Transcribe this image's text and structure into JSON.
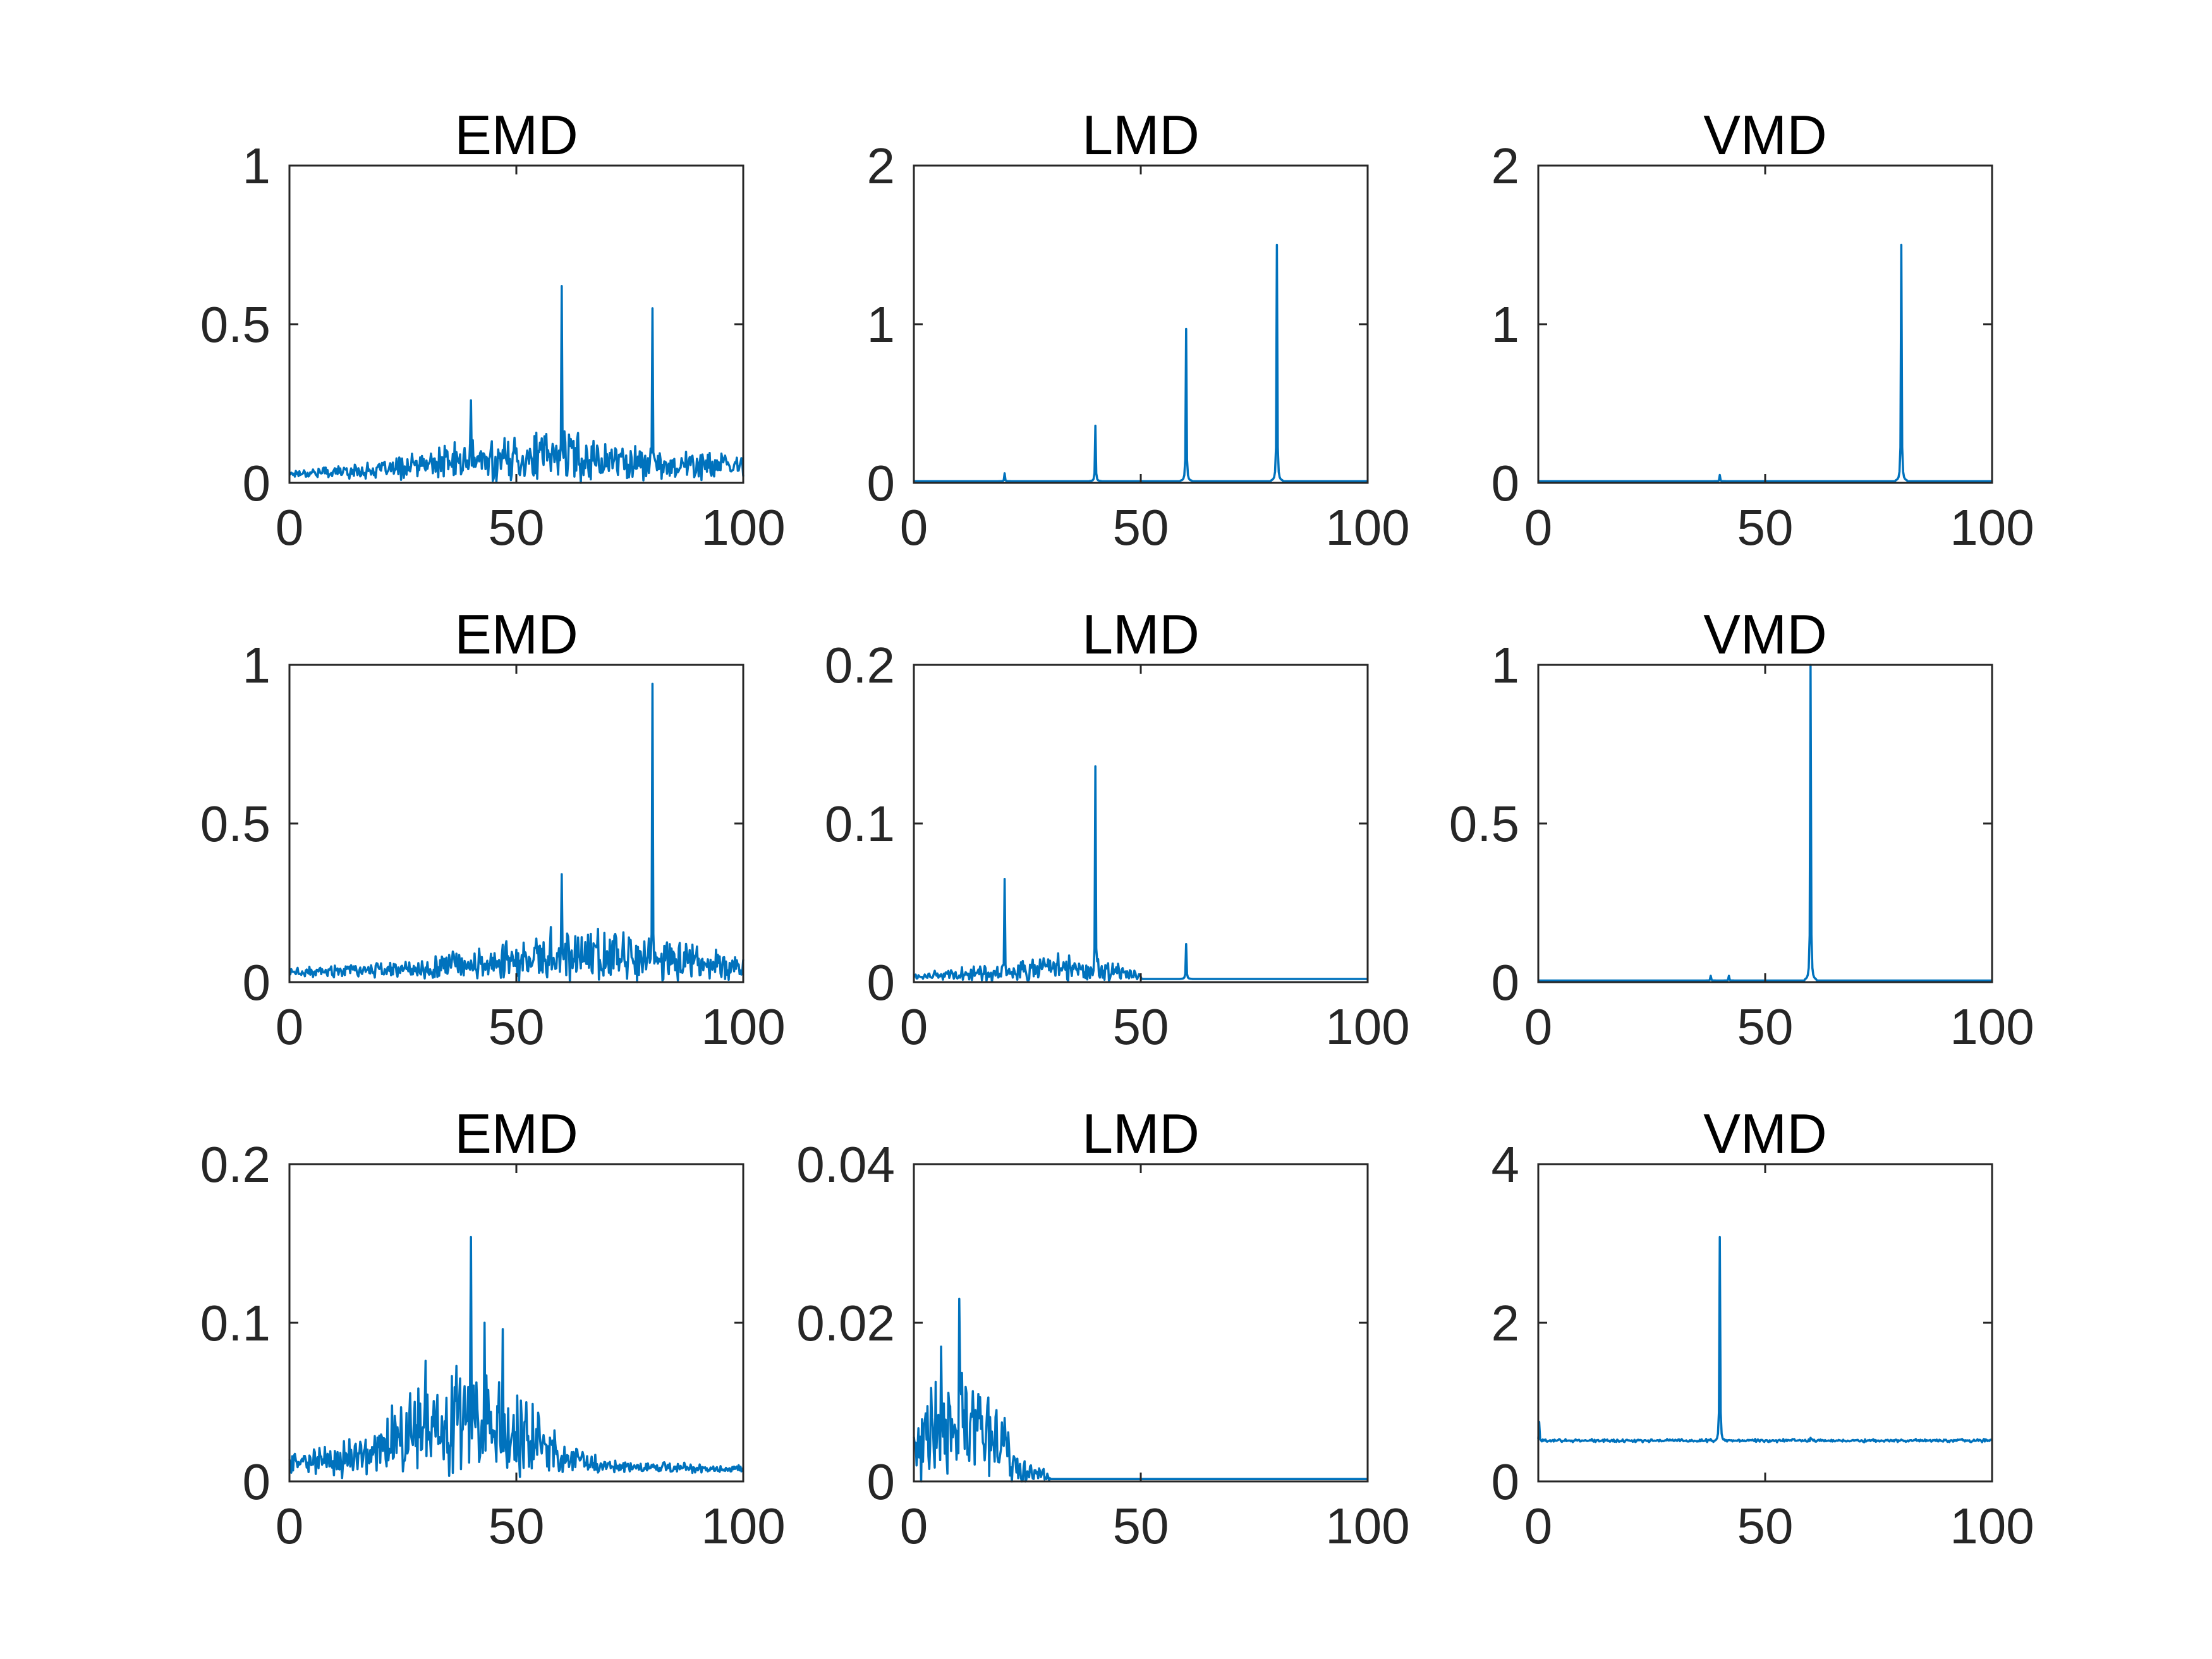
{
  "figure": {
    "background": "#ffffff",
    "line_color": "#0072bd",
    "axes_color": "#262626"
  },
  "chart_data": [
    {
      "type": "line",
      "title": "EMD",
      "xlim": [
        0,
        100
      ],
      "ylim": [
        0,
        1
      ],
      "xticks": [
        "0",
        "50",
        "100"
      ],
      "yticks": [
        "0",
        "0.5",
        "1"
      ],
      "base": 0.02,
      "noise": {
        "from": 0,
        "to": 100,
        "env": [
          [
            0,
            0.02
          ],
          [
            20,
            0.04
          ],
          [
            35,
            0.09
          ],
          [
            60,
            0.13
          ],
          [
            80,
            0.08
          ],
          [
            100,
            0.06
          ]
        ]
      },
      "peaks": [
        {
          "x": 40,
          "y": 0.26
        },
        {
          "x": 60,
          "y": 0.62
        },
        {
          "x": 80,
          "y": 0.55
        }
      ]
    },
    {
      "type": "line",
      "title": "LMD",
      "xlim": [
        0,
        100
      ],
      "ylim": [
        0,
        2
      ],
      "xticks": [
        "0",
        "50",
        "100"
      ],
      "yticks": [
        "0",
        "1",
        "2"
      ],
      "base": 0.01,
      "noise": null,
      "peaks": [
        {
          "x": 20,
          "y": 0.06
        },
        {
          "x": 40,
          "y": 0.36
        },
        {
          "x": 60,
          "y": 0.97
        },
        {
          "x": 80,
          "y": 1.5
        }
      ]
    },
    {
      "type": "line",
      "title": "VMD",
      "xlim": [
        0,
        100
      ],
      "ylim": [
        0,
        2
      ],
      "xticks": [
        "0",
        "50",
        "100"
      ],
      "yticks": [
        "0",
        "1",
        "2"
      ],
      "base": 0.01,
      "noise": null,
      "peaks": [
        {
          "x": 40,
          "y": 0.05
        },
        {
          "x": 80,
          "y": 1.5
        }
      ]
    },
    {
      "type": "line",
      "title": "EMD",
      "xlim": [
        0,
        100
      ],
      "ylim": [
        0,
        1
      ],
      "xticks": [
        "0",
        "50",
        "100"
      ],
      "yticks": [
        "0",
        "0.5",
        "1"
      ],
      "base": 0.02,
      "noise": {
        "from": 0,
        "to": 100,
        "env": [
          [
            0,
            0.02
          ],
          [
            25,
            0.04
          ],
          [
            45,
            0.09
          ],
          [
            60,
            0.14
          ],
          [
            78,
            0.12
          ],
          [
            100,
            0.05
          ]
        ]
      },
      "peaks": [
        {
          "x": 60,
          "y": 0.34
        },
        {
          "x": 80,
          "y": 0.94
        }
      ]
    },
    {
      "type": "line",
      "title": "LMD",
      "xlim": [
        0,
        100
      ],
      "ylim": [
        0,
        0.2
      ],
      "xticks": [
        "0",
        "50",
        "100"
      ],
      "yticks": [
        "0",
        "0.1",
        "0.2"
      ],
      "base": 0.002,
      "noise": {
        "from": 0,
        "to": 50,
        "env": [
          [
            0,
            0.003
          ],
          [
            20,
            0.01
          ],
          [
            30,
            0.015
          ],
          [
            42,
            0.012
          ],
          [
            50,
            0.004
          ]
        ]
      },
      "peaks": [
        {
          "x": 20,
          "y": 0.065
        },
        {
          "x": 40,
          "y": 0.136
        },
        {
          "x": 60,
          "y": 0.024
        }
      ]
    },
    {
      "type": "line",
      "title": "VMD",
      "xlim": [
        0,
        100
      ],
      "ylim": [
        0,
        1
      ],
      "xticks": [
        "0",
        "50",
        "100"
      ],
      "yticks": [
        "0",
        "0.5",
        "1"
      ],
      "base": 0.005,
      "noise": null,
      "peaks": [
        {
          "x": 38,
          "y": 0.02
        },
        {
          "x": 42,
          "y": 0.02
        },
        {
          "x": 60,
          "y": 1.0
        }
      ]
    },
    {
      "type": "line",
      "title": "EMD",
      "xlim": [
        0,
        100
      ],
      "ylim": [
        0,
        0.2
      ],
      "xticks": [
        "0",
        "50",
        "100"
      ],
      "yticks": [
        "0",
        "0.1",
        "0.2"
      ],
      "base": 0.006,
      "noise": {
        "from": 0,
        "to": 100,
        "env": [
          [
            0,
            0.012
          ],
          [
            15,
            0.018
          ],
          [
            30,
            0.05
          ],
          [
            40,
            0.06
          ],
          [
            50,
            0.045
          ],
          [
            60,
            0.02
          ],
          [
            70,
            0.006
          ],
          [
            100,
            0.004
          ]
        ]
      },
      "peaks": [
        {
          "x": 40,
          "y": 0.154
        },
        {
          "x": 43,
          "y": 0.1
        },
        {
          "x": 47,
          "y": 0.096
        },
        {
          "x": 30,
          "y": 0.076
        }
      ]
    },
    {
      "type": "line",
      "title": "LMD",
      "xlim": [
        0,
        100
      ],
      "ylim": [
        0,
        0.04
      ],
      "xticks": [
        "0",
        "50",
        "100"
      ],
      "yticks": [
        "0",
        "0.02",
        "0.04"
      ],
      "base": 0.0003,
      "noise": {
        "from": 0,
        "to": 30,
        "env": [
          [
            0,
            0.006
          ],
          [
            5,
            0.012
          ],
          [
            10,
            0.013
          ],
          [
            15,
            0.01
          ],
          [
            20,
            0.006
          ],
          [
            25,
            0.002
          ],
          [
            30,
            0.001
          ]
        ]
      },
      "peaks": [
        {
          "x": 10,
          "y": 0.023
        },
        {
          "x": 6,
          "y": 0.017
        },
        {
          "x": 20,
          "y": 0.008
        }
      ]
    },
    {
      "type": "line",
      "title": "VMD",
      "xlim": [
        0,
        100
      ],
      "ylim": [
        0,
        4
      ],
      "xticks": [
        "0",
        "50",
        "100"
      ],
      "yticks": [
        "0",
        "2",
        "4"
      ],
      "base": 0.5,
      "noise": {
        "from": 0,
        "to": 100,
        "env": [
          [
            0,
            0.03
          ],
          [
            100,
            0.03
          ]
        ]
      },
      "peaks": [
        {
          "x": 0.3,
          "y": 0.75
        },
        {
          "x": 40,
          "y": 3.08
        },
        {
          "x": 60,
          "y": 0.55
        }
      ]
    }
  ]
}
